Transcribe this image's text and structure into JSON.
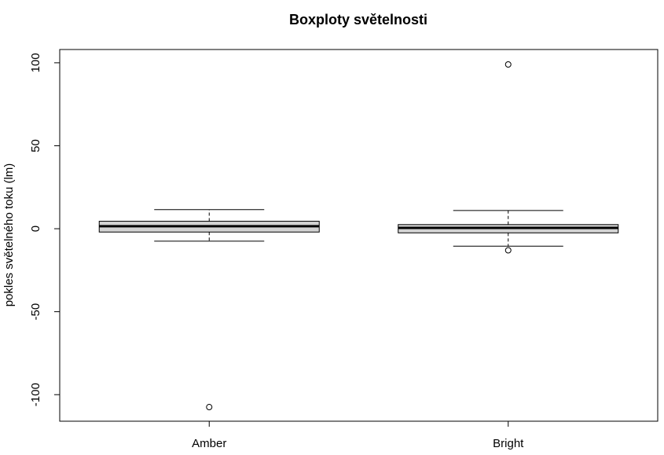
{
  "chart_data": {
    "type": "boxplot",
    "title": "Boxploty světelnosti",
    "xlabel": "",
    "ylabel": "pokles světelného toku (lm)",
    "ylim": [
      -116,
      108
    ],
    "yticks": [
      -100,
      -50,
      0,
      50,
      100
    ],
    "ytick_labels": [
      "-100",
      "-50",
      "0",
      "50",
      "100"
    ],
    "categories": [
      "Amber",
      "Bright"
    ],
    "grid": false,
    "box_fill": "#d3d3d3",
    "boxes": [
      {
        "name": "Amber",
        "whisker_low": -7.5,
        "q1": -2,
        "median": 1.5,
        "q3": 4.5,
        "whisker_high": 11.5,
        "outliers": [
          -107.5
        ]
      },
      {
        "name": "Bright",
        "whisker_low": -10.5,
        "q1": -2.5,
        "median": 0.5,
        "q3": 2.5,
        "whisker_high": 11,
        "outliers": [
          99,
          -13
        ]
      }
    ]
  }
}
